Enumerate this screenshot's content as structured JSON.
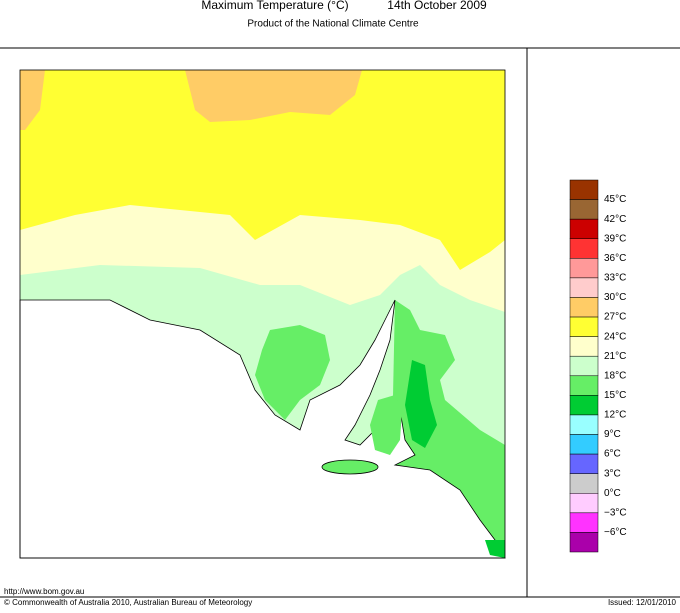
{
  "header": {
    "title": "Maximum Temperature (°C)",
    "date": "14th October 2009",
    "subtitle": "Product of the National Climate Centre"
  },
  "legend": {
    "colors": [
      "#993300",
      "#996633",
      "#cc0000",
      "#ff3333",
      "#ff9999",
      "#ffcccc",
      "#ffcc66",
      "#ffff33",
      "#ffffcc",
      "#ccffcc",
      "#66ee66",
      "#00cc33",
      "#99ffff",
      "#33ccff",
      "#6666ff",
      "#cccccc",
      "#ffccff",
      "#ff33ff",
      "#aa00aa"
    ],
    "labels": [
      "45°C",
      "42°C",
      "39°C",
      "36°C",
      "33°C",
      "30°C",
      "27°C",
      "24°C",
      "21°C",
      "18°C",
      "15°C",
      "12°C",
      "9°C",
      "6°C",
      "3°C",
      "0°C",
      "−3°C",
      "−6°C"
    ]
  },
  "footer": {
    "url": "http://www.bom.gov.au",
    "copyright": "© Commonwealth of Australia 2010, Australian Bureau of Meteorology",
    "issued": "Issued: 12/01/2010"
  }
}
